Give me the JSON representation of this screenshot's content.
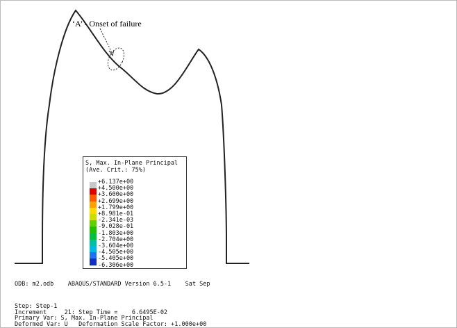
{
  "annotation": "‘A’ - Onset of failure",
  "legend": {
    "title": [
      "S, Max. In-Plane Principal",
      "(Ave. Crit.: 75%)"
    ],
    "labels": [
      "+6.137e+00",
      "+4.500e+00",
      "+3.600e+00",
      "+2.699e+00",
      "+1.799e+00",
      "+8.981e-01",
      "-2.341e-03",
      "-9.028e-01",
      "-1.803e+00",
      "-2.704e+00",
      "-3.604e+00",
      "-4.505e+00",
      "-5.405e+00",
      "-6.306e+00"
    ]
  },
  "footer": {
    "odb": "ODB: m2.odb    ABAQUS/STANDARD Version 6.5-1    Sat Sep",
    "lines": [
      "Step: Step-1",
      "Increment     21: Step Time =    6.6495E-02",
      "Primary Var: S, Max. In-Plane Principal",
      "Deformed Var: U   Deformation Scale Factor: +1.000e+00"
    ]
  }
}
